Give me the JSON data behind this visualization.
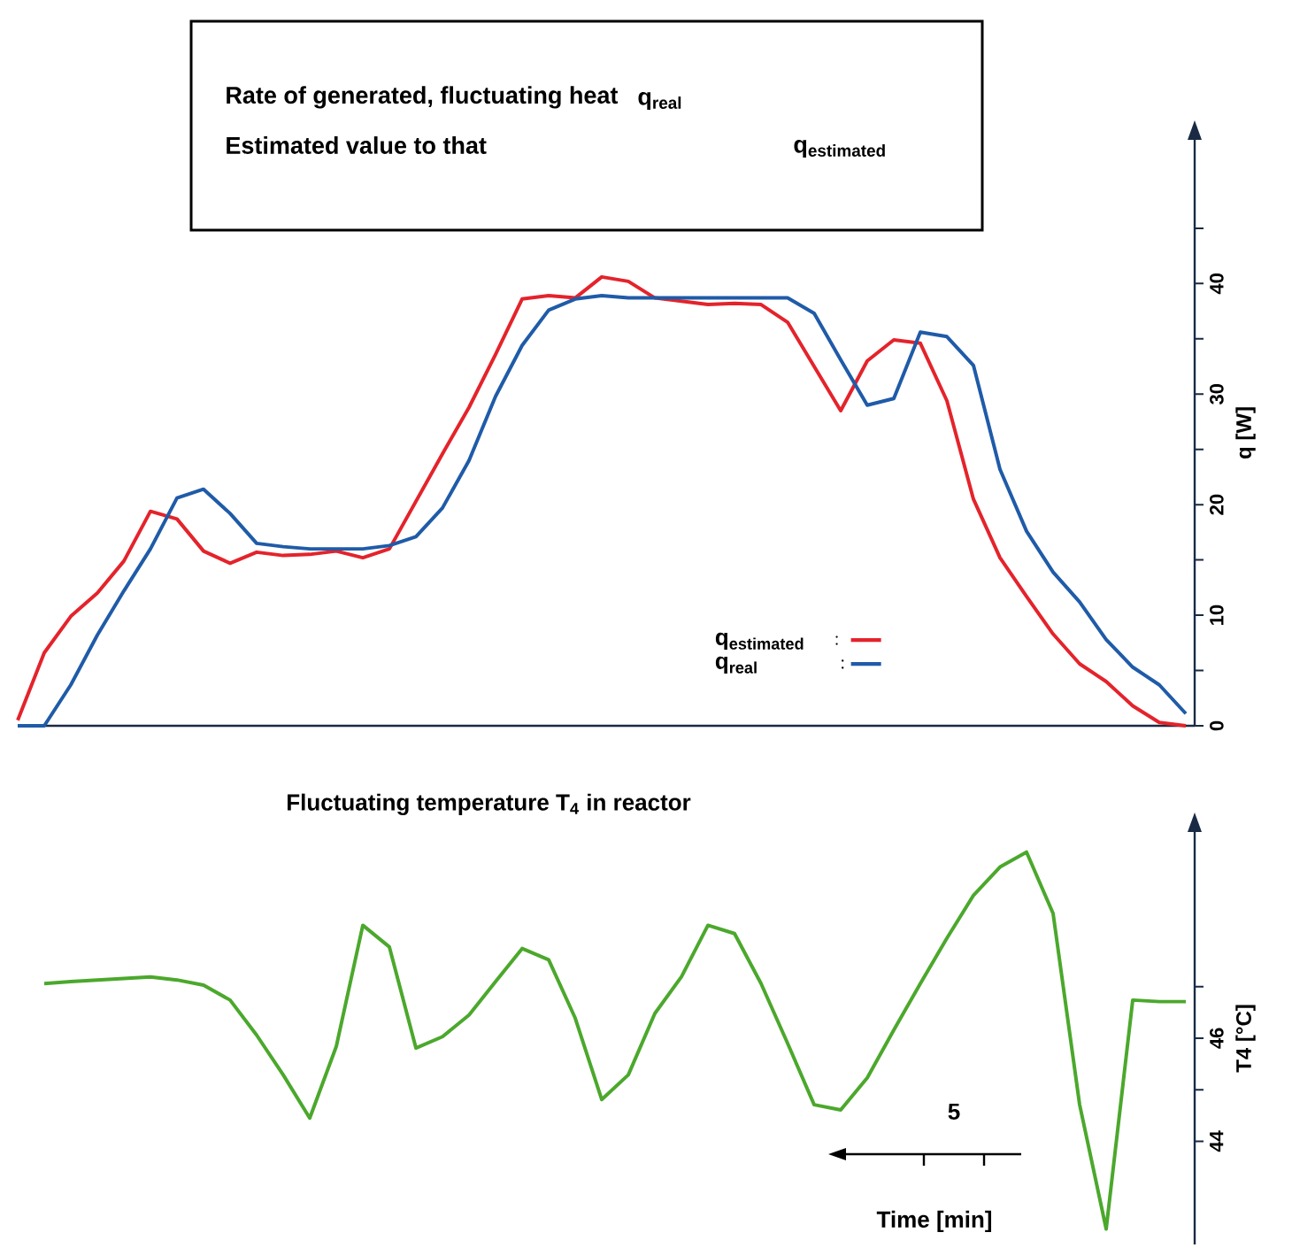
{
  "chart_data": [
    {
      "type": "line",
      "annotations": [
        "Rate of generated, fluctuating heat",
        "\\mathbf{q}_{\\mathbf{real}}",
        "Estimated value to that",
        "\\mathbf{q}_{\\mathbf{estimated}}"
      ],
      "ylabel": "q [W]",
      "categories": [
        null,
        null,
        null,
        null,
        null,
        null,
        null,
        null,
        null,
        null,
        null,
        null,
        null,
        null,
        null,
        null,
        null,
        null,
        null,
        null,
        null,
        null,
        null,
        null,
        null,
        null,
        null,
        null,
        null,
        null,
        null,
        null,
        null,
        null,
        null,
        null,
        null,
        null,
        null,
        null,
        null,
        null,
        null,
        null,
        null
      ],
      "ylim": [
        0,
        53
      ],
      "yticks": [
        0,
        {
          "value": 5,
          "label": null
        },
        10,
        {
          "value": 15,
          "label": null
        },
        20,
        {
          "value": 25,
          "label": null
        },
        30,
        {
          "value": 35,
          "label": null
        },
        40,
        {
          "value": 45,
          "label": null
        }
      ],
      "legend": "bottom right",
      "series": [
        {
          "name": "\\mathbf{q}_{\\mathbf{estimated}}\\quad :",
          "color": "#e4232b",
          "values": [
            0.5,
            6.6,
            9.9,
            12.0,
            14.9,
            19.4,
            18.7,
            15.8,
            14.7,
            15.7,
            15.4,
            15.5,
            15.8,
            15.2,
            16.0,
            20.3,
            24.6,
            28.8,
            33.6,
            38.6,
            38.9,
            38.7,
            40.6,
            40.2,
            38.7,
            38.4,
            38.1,
            38.2,
            38.1,
            36.5,
            32.5,
            28.5,
            33.0,
            34.9,
            34.6,
            29.4,
            20.5,
            15.2,
            11.7,
            8.3,
            5.6,
            4.0,
            1.8,
            0.3,
            0
          ]
        },
        {
          "name": "\\mathbf{q}_{\\mathbf{real}}\\qquad\\quad\\ :",
          "color": "#1f5ba8",
          "values": [
            0,
            0,
            3.7,
            8.2,
            12.2,
            16.0,
            20.6,
            21.4,
            19.2,
            16.5,
            16.2,
            16.0,
            16.0,
            16.0,
            16.3,
            17.1,
            19.7,
            24.0,
            29.8,
            34.4,
            37.6,
            38.6,
            38.9,
            38.7,
            38.7,
            38.7,
            38.7,
            38.7,
            38.7,
            38.7,
            37.3,
            33.1,
            29.0,
            29.6,
            35.6,
            35.2,
            32.6,
            23.2,
            17.6,
            13.9,
            11.2,
            7.8,
            5.3,
            3.7,
            1.1
          ]
        }
      ]
    },
    {
      "type": "line",
      "title": "Fluctuating temperature T$_{4}$ in reactor",
      "xlabel": "Time [min]",
      "ylabel": "T4 [°C]",
      "annotations": [
        "5"
      ],
      "categories": [
        null,
        null,
        null,
        null,
        null,
        null,
        null,
        null,
        null,
        null,
        null,
        null,
        null,
        null,
        null,
        null,
        null,
        null,
        null,
        null,
        null,
        null,
        null,
        null,
        null,
        null,
        null,
        null,
        null,
        null,
        null,
        null,
        null,
        null,
        null,
        null,
        null,
        null,
        null,
        null,
        null,
        null,
        null,
        null,
        null
      ],
      "ylim": [
        42,
        50
      ],
      "yticks": [
        44,
        {
          "value": 45,
          "label": null
        },
        46,
        {
          "value": 47,
          "label": null
        }
      ],
      "series": [
        {
          "color": "#4ba82c",
          "values": [
            null,
            47.06,
            47.1,
            47.13,
            47.16,
            47.19,
            47.13,
            47.03,
            46.74,
            46.06,
            45.29,
            44.45,
            45.84,
            48.19,
            47.77,
            45.81,
            46.03,
            46.45,
            47.1,
            47.74,
            47.52,
            46.39,
            44.81,
            45.29,
            46.48,
            47.19,
            48.19,
            48.03,
            47.06,
            45.9,
            44.71,
            44.61,
            45.23,
            46.16,
            47.06,
            47.94,
            48.77,
            49.32,
            49.61,
            48.42,
            44.71,
            42.3,
            46.74,
            46.71,
            46.71
          ]
        }
      ]
    }
  ]
}
